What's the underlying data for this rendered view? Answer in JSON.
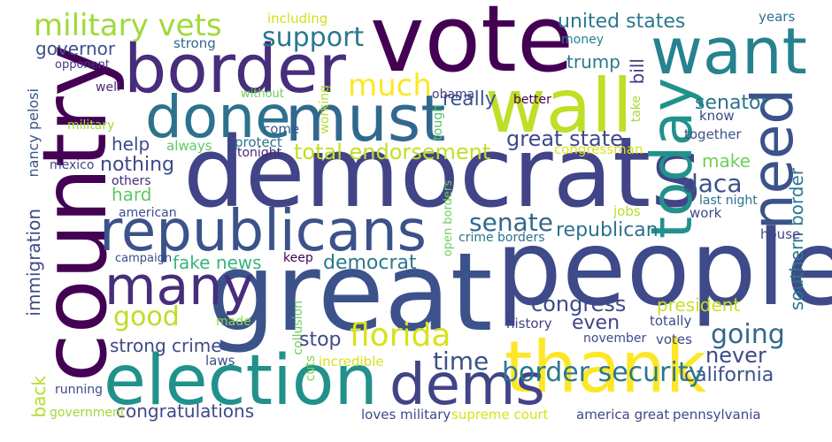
{
  "words": [
    {
      "text": "vote",
      "color": "#440154"
    },
    {
      "text": "democrats",
      "color": "#414487"
    },
    {
      "text": "great",
      "color": "#3b528b"
    },
    {
      "text": "people",
      "color": "#3e4a89"
    },
    {
      "text": "country",
      "color": "#440154"
    },
    {
      "text": "border",
      "color": "#472d7b"
    },
    {
      "text": "must",
      "color": "#31688e"
    },
    {
      "text": "done",
      "color": "#2c728e"
    },
    {
      "text": "want",
      "color": "#26828e"
    },
    {
      "text": "wall",
      "color": "#bddf26"
    },
    {
      "text": "today",
      "color": "#21918c"
    },
    {
      "text": "need",
      "color": "#3b528b"
    },
    {
      "text": "republicans",
      "color": "#3b528b"
    },
    {
      "text": "many",
      "color": "#472d7b"
    },
    {
      "text": "election",
      "color": "#21918c"
    },
    {
      "text": "thank",
      "color": "#fde725"
    },
    {
      "text": "dems",
      "color": "#414487"
    },
    {
      "text": "florida",
      "color": "#d8e219"
    },
    {
      "text": "military vets",
      "color": "#a0da39"
    },
    {
      "text": "support",
      "color": "#2a788e"
    },
    {
      "text": "much",
      "color": "#fde725"
    },
    {
      "text": "governor",
      "color": "#3b528b"
    },
    {
      "text": "opponent",
      "color": "#443983"
    },
    {
      "text": "including",
      "color": "#d0e11c"
    },
    {
      "text": "strong",
      "color": "#31688e"
    },
    {
      "text": "united states",
      "color": "#2a788e"
    },
    {
      "text": "years",
      "color": "#2c728e"
    },
    {
      "text": "money",
      "color": "#26828e"
    },
    {
      "text": "trump",
      "color": "#2a788e"
    },
    {
      "text": "bill",
      "color": "#443983"
    },
    {
      "text": "really",
      "color": "#39568c"
    },
    {
      "text": "better",
      "color": "#440154"
    },
    {
      "text": "obama",
      "color": "#433e85"
    },
    {
      "text": "senator",
      "color": "#2c728e"
    },
    {
      "text": "well",
      "color": "#482878"
    },
    {
      "text": "without",
      "color": "#6ece58"
    },
    {
      "text": "working",
      "color": "#b5de2b"
    },
    {
      "text": "tough",
      "color": "#52c569"
    },
    {
      "text": "take",
      "color": "#a5db36"
    },
    {
      "text": "know",
      "color": "#3e4a89"
    },
    {
      "text": "military",
      "color": "#a0da39"
    },
    {
      "text": "help",
      "color": "#3e4a89"
    },
    {
      "text": "come",
      "color": "#39568c"
    },
    {
      "text": "great state",
      "color": "#3e4a89"
    },
    {
      "text": "together",
      "color": "#3b528b"
    },
    {
      "text": "always",
      "color": "#5ec962"
    },
    {
      "text": "protect",
      "color": "#2c728e"
    },
    {
      "text": "nothing",
      "color": "#3e4a89"
    },
    {
      "text": "tonight",
      "color": "#482878"
    },
    {
      "text": "total endorsement",
      "color": "#c2df23"
    },
    {
      "text": "congressman",
      "color": "#dde318"
    },
    {
      "text": "make",
      "color": "#6ece58"
    },
    {
      "text": "southern border",
      "color": "#2a788e"
    },
    {
      "text": "nancy pelosi",
      "color": "#39568c"
    },
    {
      "text": "mexico",
      "color": "#3e4a89"
    },
    {
      "text": "others",
      "color": "#482878"
    },
    {
      "text": "hard",
      "color": "#5ec962"
    },
    {
      "text": "daca",
      "color": "#3b528b"
    },
    {
      "text": "american",
      "color": "#3e4a89"
    },
    {
      "text": "jobs",
      "color": "#b5de2b"
    },
    {
      "text": "last night",
      "color": "#2c728e"
    },
    {
      "text": "work",
      "color": "#3e4a89"
    },
    {
      "text": "senate",
      "color": "#31688e"
    },
    {
      "text": "immigration",
      "color": "#3e4a89"
    },
    {
      "text": "republican",
      "color": "#2c728e"
    },
    {
      "text": "house",
      "color": "#414487"
    },
    {
      "text": "open borders",
      "color": "#6ece58"
    },
    {
      "text": "crime borders",
      "color": "#2c728e"
    },
    {
      "text": "campaign",
      "color": "#3e4a89"
    },
    {
      "text": "keep",
      "color": "#440154"
    },
    {
      "text": "fake news",
      "color": "#35b779"
    },
    {
      "text": "democrat",
      "color": "#2a788e"
    },
    {
      "text": "good",
      "color": "#bddf26"
    },
    {
      "text": "congress",
      "color": "#3e4a89"
    },
    {
      "text": "president",
      "color": "#c8e020"
    },
    {
      "text": "going",
      "color": "#31688e"
    },
    {
      "text": "made",
      "color": "#8fd744"
    },
    {
      "text": "collusion",
      "color": "#6ece58"
    },
    {
      "text": "history",
      "color": "#433e85"
    },
    {
      "text": "totally",
      "color": "#3e4a89"
    },
    {
      "text": "even",
      "color": "#414487"
    },
    {
      "text": "stop",
      "color": "#3e4a89"
    },
    {
      "text": "never",
      "color": "#3e4a89"
    },
    {
      "text": "strong crime",
      "color": "#3e4a89"
    },
    {
      "text": "time",
      "color": "#3b528b"
    },
    {
      "text": "november",
      "color": "#3e4a89"
    },
    {
      "text": "votes",
      "color": "#3e4a89"
    },
    {
      "text": "california",
      "color": "#3b528b"
    },
    {
      "text": "laws",
      "color": "#3e4a89"
    },
    {
      "text": "cuts",
      "color": "#7ad151"
    },
    {
      "text": "incredible",
      "color": "#d8e219"
    },
    {
      "text": "border security",
      "color": "#2a788e"
    },
    {
      "text": "back",
      "color": "#b5de2b"
    },
    {
      "text": "running",
      "color": "#3e4a89"
    },
    {
      "text": "congratulations",
      "color": "#3e4a89"
    },
    {
      "text": "government",
      "color": "#a0da39"
    },
    {
      "text": "loves military",
      "color": "#3e4a89"
    },
    {
      "text": "supreme court",
      "color": "#d8e219"
    },
    {
      "text": "america great",
      "color": "#3e4a89"
    },
    {
      "text": "pennsylvania",
      "color": "#3e4a89"
    }
  ]
}
